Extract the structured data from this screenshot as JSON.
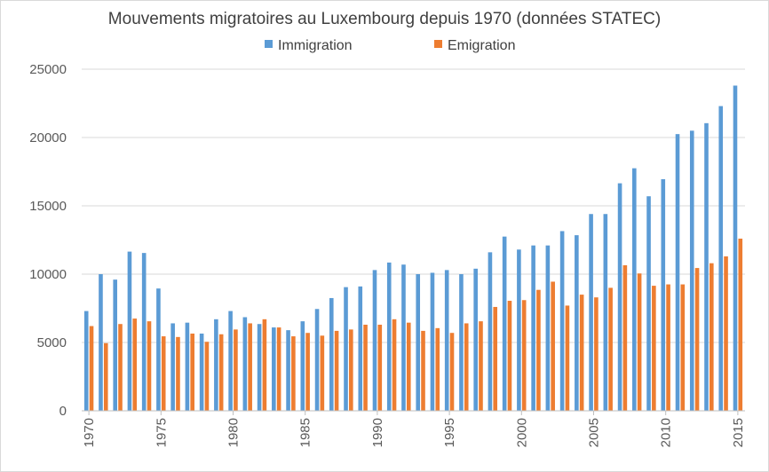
{
  "chart_data": {
    "type": "bar",
    "title": "Mouvements migratoires au Luxembourg depuis 1970 (données STATEC)",
    "xlabel": "",
    "ylabel": "",
    "ylim": [
      0,
      25000
    ],
    "y_ticks": [
      0,
      5000,
      10000,
      15000,
      20000,
      25000
    ],
    "x_tick_labels": [
      "1970",
      "1975",
      "1980",
      "1985",
      "1990",
      "1995",
      "2000",
      "2005",
      "2010",
      "2015"
    ],
    "grid": true,
    "legend": "top",
    "categories": [
      1970,
      1971,
      1972,
      1973,
      1974,
      1975,
      1976,
      1977,
      1978,
      1979,
      1980,
      1981,
      1982,
      1983,
      1984,
      1985,
      1986,
      1987,
      1988,
      1989,
      1990,
      1991,
      1992,
      1993,
      1994,
      1995,
      1996,
      1997,
      1998,
      1999,
      2000,
      2001,
      2002,
      2003,
      2004,
      2005,
      2006,
      2007,
      2008,
      2009,
      2010,
      2011,
      2012,
      2013,
      2014,
      2015
    ],
    "series": [
      {
        "name": "Immigration",
        "color": "#5b9bd5",
        "values": [
          7300,
          10000,
          9600,
          11650,
          11550,
          8950,
          6400,
          6450,
          5650,
          6700,
          7300,
          6850,
          6350,
          6100,
          5900,
          6550,
          7450,
          8250,
          9050,
          9100,
          10300,
          10850,
          10700,
          10000,
          10100,
          10300,
          10000,
          10400,
          11600,
          12750,
          11800,
          12100,
          12100,
          13150,
          12850,
          14400,
          14400,
          16650,
          17750,
          15700,
          16950,
          20250,
          20500,
          21050,
          22300,
          23800
        ]
      },
      {
        "name": "Emigration",
        "color": "#ed7d31",
        "values": [
          6200,
          4950,
          6350,
          6750,
          6550,
          5450,
          5400,
          5650,
          5050,
          5600,
          5950,
          6400,
          6700,
          6100,
          5450,
          5700,
          5500,
          5850,
          5950,
          6300,
          6300,
          6700,
          6450,
          5850,
          6050,
          5700,
          6400,
          6550,
          7600,
          8050,
          8100,
          8850,
          9450,
          7700,
          8500,
          8300,
          9000,
          10650,
          10050,
          9150,
          9250,
          9250,
          10450,
          10800,
          11300,
          12600
        ]
      }
    ]
  }
}
